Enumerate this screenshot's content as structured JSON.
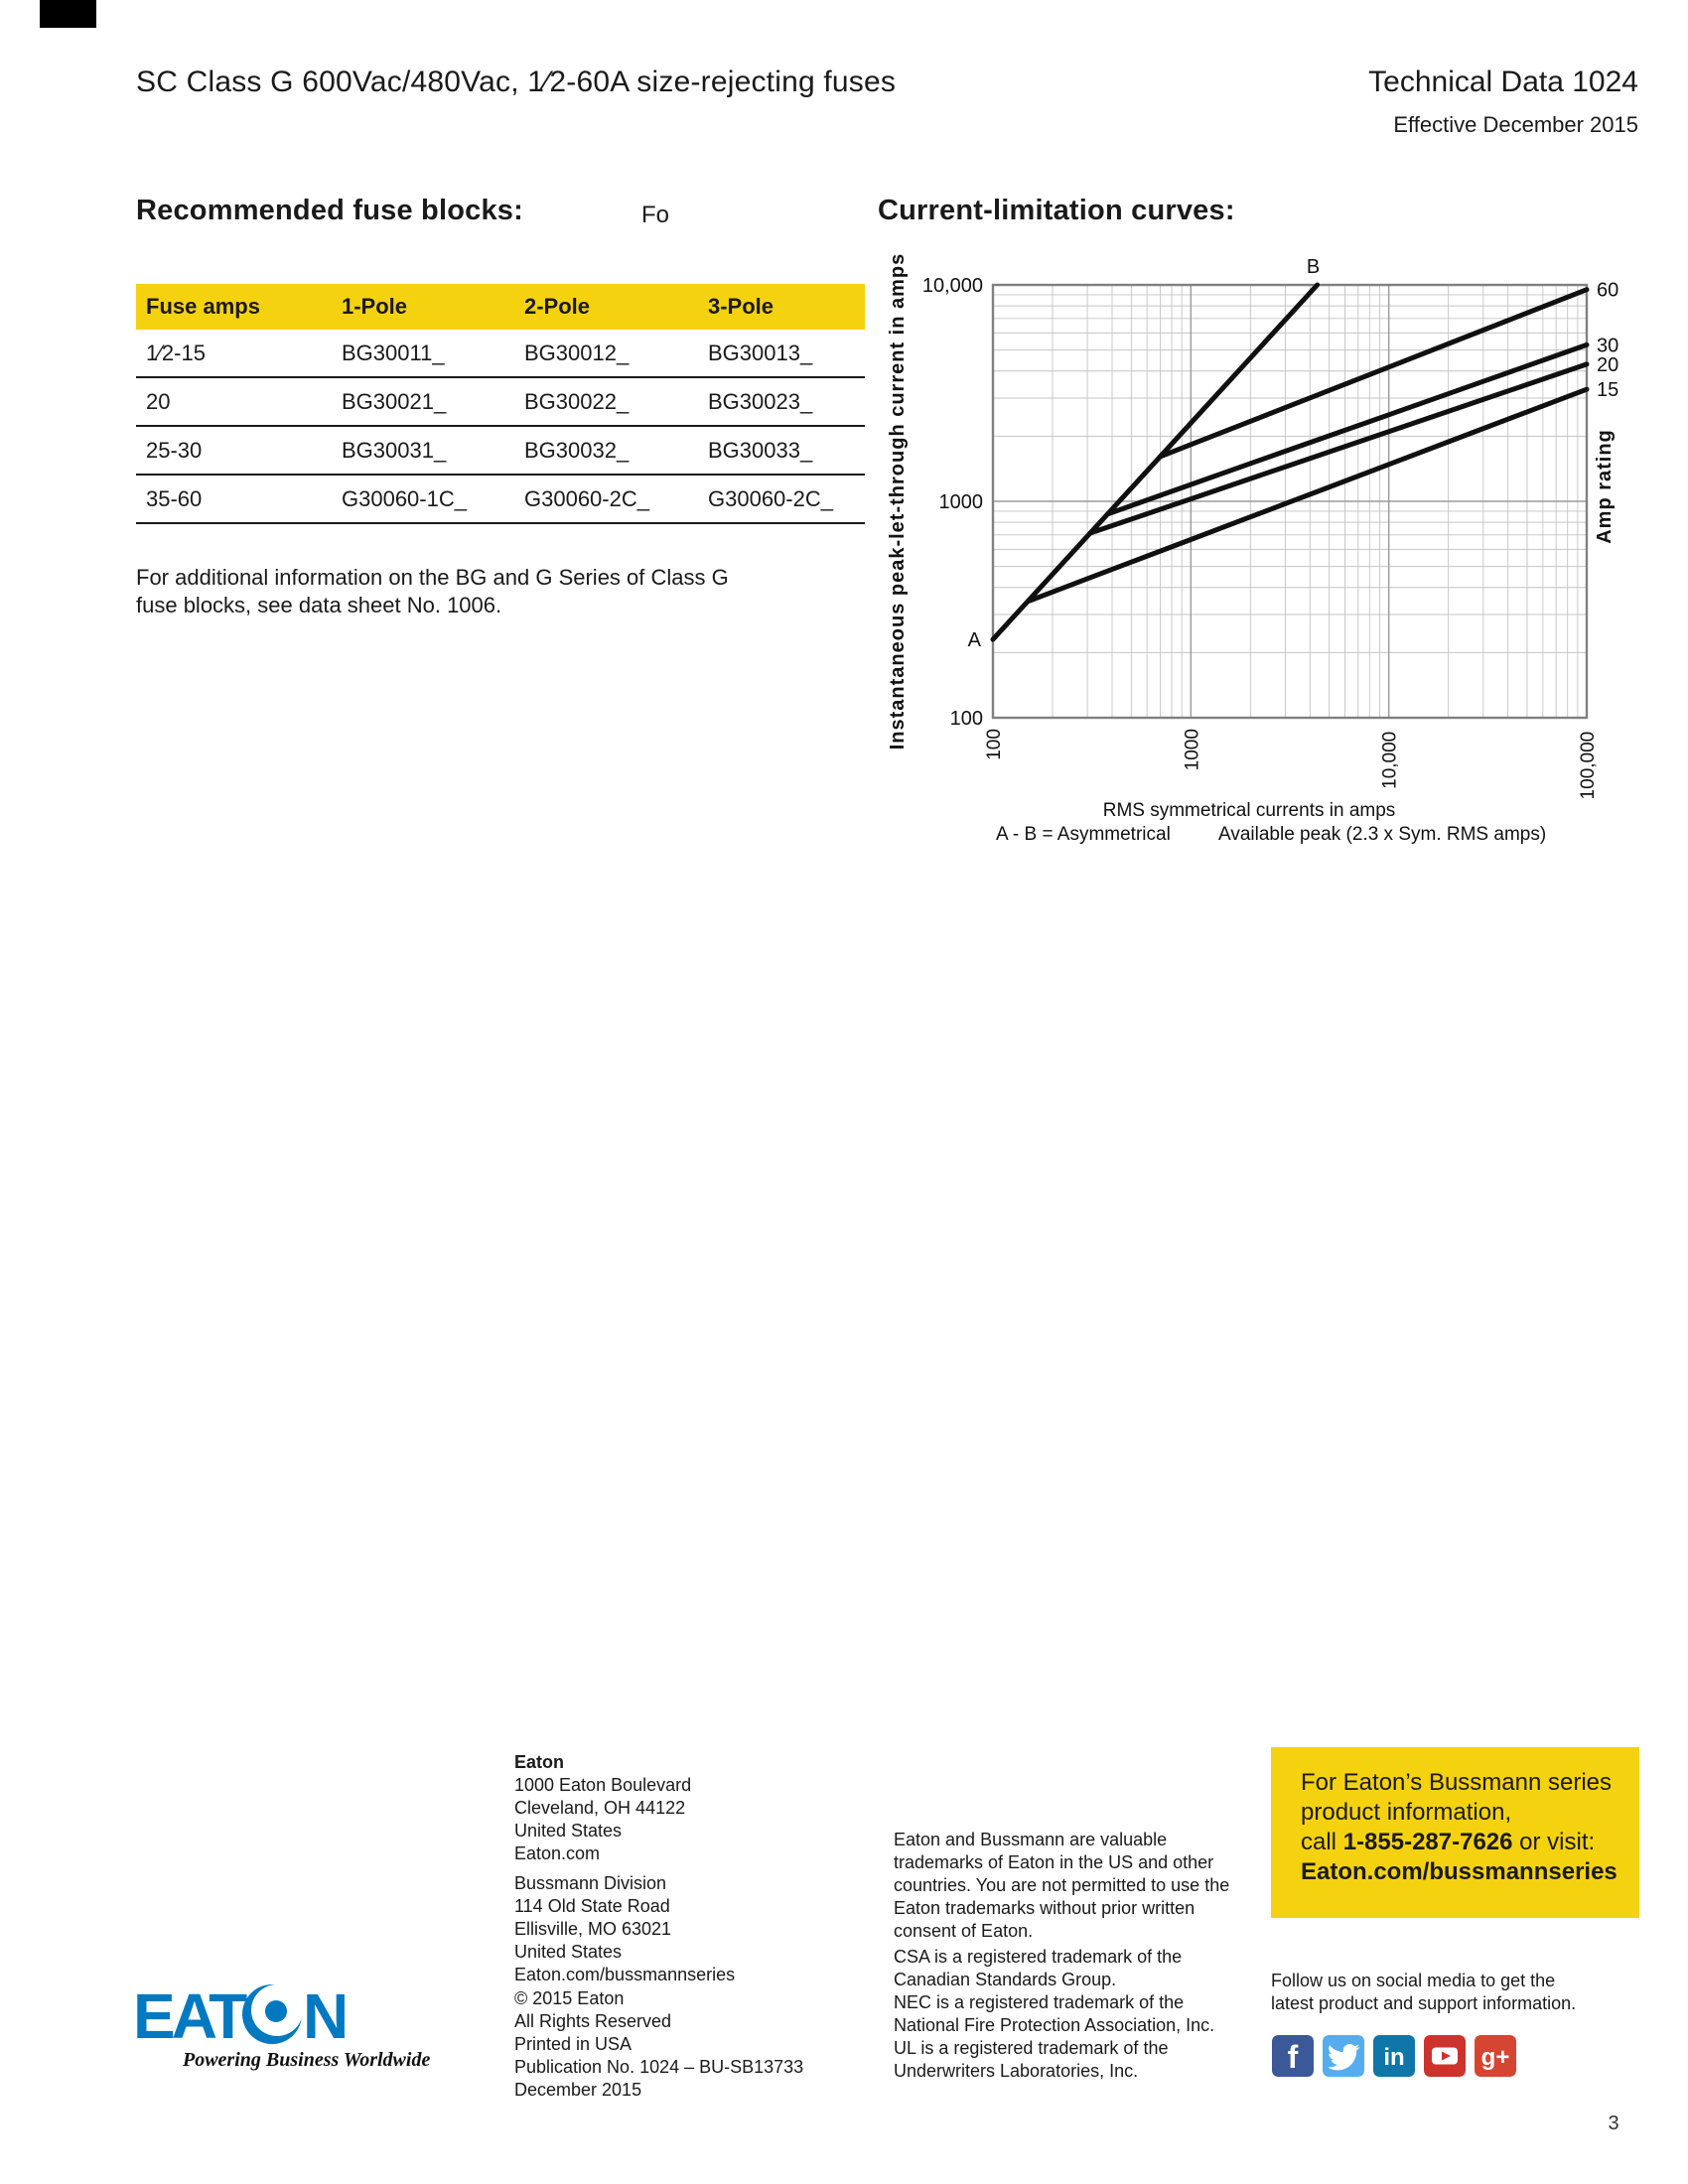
{
  "page": {
    "number": "3"
  },
  "colors": {
    "yellow": "#F5D20F",
    "eaton_blue": "#0079C1",
    "curve_black": "#101010",
    "grid_minor": "#c4c4c4",
    "grid_major": "#9a9a9a",
    "frame_gray": "#808080"
  },
  "header": {
    "title": "SC Class G 600Vac/480Vac, 1⁄2-60A size-rejecting fuses",
    "doc_number": "Technical Data 1024",
    "effective": "Effective December 2015"
  },
  "fuse_blocks": {
    "title": "Recommended fuse blocks:",
    "stray": "Fo",
    "columns": [
      "Fuse amps",
      "1-Pole",
      "2-Pole",
      "3-Pole"
    ],
    "rows": [
      [
        "1⁄2-15",
        "BG30011_",
        "BG30012_",
        "BG30013_"
      ],
      [
        "20",
        "BG30021_",
        "BG30022_",
        "BG30023_"
      ],
      [
        "25-30",
        "BG30031_",
        "BG30032_",
        "BG30033_"
      ],
      [
        "35-60",
        "G30060-1C_",
        "G30060-2C_",
        "G30060-2C_"
      ]
    ],
    "note_lines": [
      "For additional information on the BG and G Series of Class G",
      "fuse blocks, see data sheet No. 1006."
    ]
  },
  "chart": {
    "title": "Current-limitation curves:"
  },
  "chart_data": {
    "type": "line",
    "x_scale": "log",
    "y_scale": "log",
    "xlim": [
      100,
      100000
    ],
    "ylim": [
      100,
      10000
    ],
    "grid": true,
    "x_ticks": [
      "100",
      "1000",
      "10,000",
      "100,000"
    ],
    "y_ticks": [
      "10,000",
      "1000",
      "100"
    ],
    "xlabel": "RMS symmetrical currents in amps",
    "caption_left": "A - B = Asymmetrical",
    "caption_right": "Available peak (2.3 x Sym. RMS amps)",
    "ylabel": "Instantaneous peak-let-through current in amps",
    "y2label": "Amp rating",
    "endpoint_labels": {
      "start": "A",
      "end": "B"
    },
    "series": [
      {
        "name": "A-B",
        "label_right": false,
        "points": [
          [
            100,
            230
          ],
          [
            4348,
            10000
          ]
        ]
      },
      {
        "name": "15",
        "label_right": true,
        "points": [
          [
            150,
            345
          ],
          [
            300,
            439
          ],
          [
            500,
            524
          ],
          [
            1000,
            666
          ],
          [
            2000,
            847
          ],
          [
            5000,
            1164
          ],
          [
            10000,
            1481
          ],
          [
            20000,
            1884
          ],
          [
            50000,
            2589
          ],
          [
            100000,
            3292
          ]
        ]
      },
      {
        "name": "20",
        "label_right": true,
        "points": [
          [
            310,
            713
          ],
          [
            500,
            827
          ],
          [
            1000,
            1026
          ],
          [
            3000,
            1444
          ],
          [
            10000,
            2100
          ],
          [
            30000,
            2955
          ],
          [
            100000,
            4300
          ]
        ]
      },
      {
        "name": "30",
        "label_right": true,
        "points": [
          [
            380,
            874
          ],
          [
            500,
            955
          ],
          [
            1000,
            1195
          ],
          [
            3000,
            1704
          ],
          [
            10000,
            2513
          ],
          [
            30000,
            3583
          ],
          [
            100000,
            5285
          ]
        ]
      },
      {
        "name": "60",
        "label_right": true,
        "points": [
          [
            700,
            1610
          ],
          [
            1000,
            1829
          ],
          [
            3000,
            2711
          ],
          [
            10000,
            4172
          ],
          [
            30000,
            6183
          ],
          [
            100000,
            9517
          ]
        ]
      }
    ]
  },
  "footer": {
    "logo": {
      "word_a": "EAT",
      "word_b": "N",
      "tagline": "Powering Business Worldwide"
    },
    "address_hq": [
      "Eaton",
      "1000 Eaton Boulevard",
      "Cleveland, OH 44122",
      "United States",
      "Eaton.com"
    ],
    "address_div": [
      "Bussmann Division",
      "114 Old State Road",
      "Ellisville, MO 63021",
      "United States",
      "Eaton.com/bussmannseries"
    ],
    "copyright": [
      "© 2015 Eaton",
      "All Rights Reserved",
      "Printed in USA",
      "Publication No. 1024 – BU-SB13733",
      "December 2015"
    ],
    "trademark_para1": [
      "Eaton and Bussmann are valuable",
      "trademarks of Eaton in the US and other",
      "countries. You are not permitted to use the",
      "Eaton trademarks without prior written",
      "consent of Eaton."
    ],
    "trademark_para2": [
      "CSA is a registered trademark of the",
      "Canadian Standards Group.",
      "NEC is a registered trademark of the",
      "National Fire Protection Association, Inc.",
      "UL is a registered trademark of the",
      "Underwriters Laboratories, Inc."
    ],
    "contact_box": {
      "line1": "For Eaton’s Bussmann series",
      "line2": "product information,",
      "line3_pre": "call ",
      "phone": "1-855-287-7626",
      "line3_post": " or visit:",
      "line4": "Eaton.com/bussmannseries"
    },
    "follow_lines": [
      "Follow us on social media to get the",
      "latest product and support information."
    ],
    "social_icons": [
      {
        "name": "facebook-icon",
        "color": "#3B5998"
      },
      {
        "name": "twitter-icon",
        "color": "#55ACEE"
      },
      {
        "name": "linkedin-icon",
        "color": "#0E76A8"
      },
      {
        "name": "youtube-icon",
        "color": "#CD332D"
      },
      {
        "name": "google-plus-icon",
        "color": "#D44632"
      }
    ]
  }
}
